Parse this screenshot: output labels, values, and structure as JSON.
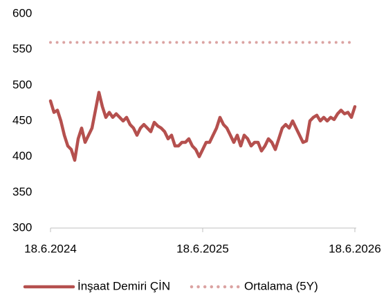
{
  "chart_data": {
    "type": "line",
    "x": [
      0,
      1,
      2,
      3,
      4,
      5,
      6,
      7,
      8,
      9,
      10,
      11,
      12,
      13,
      14,
      15,
      16,
      17,
      18,
      19,
      20,
      21,
      22,
      23,
      24,
      25,
      26,
      27,
      28,
      29,
      30,
      31,
      32,
      33,
      34,
      35,
      36,
      37,
      38,
      39,
      40,
      41,
      42,
      43,
      44,
      45,
      46,
      47,
      48,
      49,
      50,
      51,
      52,
      53,
      54,
      55,
      56,
      57,
      58,
      59,
      60,
      61,
      62,
      63,
      64,
      65,
      66,
      67,
      68,
      69,
      70,
      71,
      72,
      73,
      74,
      75,
      76,
      77,
      78,
      79,
      80,
      81,
      82,
      83,
      84,
      85,
      86,
      87,
      88
    ],
    "series": [
      {
        "name": "İnşaat Demiri ÇİN",
        "color": "#b5504e",
        "style": "solid",
        "values": [
          478,
          462,
          465,
          450,
          430,
          415,
          410,
          395,
          425,
          440,
          420,
          430,
          440,
          465,
          490,
          470,
          455,
          462,
          455,
          460,
          455,
          450,
          455,
          445,
          440,
          430,
          440,
          445,
          440,
          435,
          448,
          443,
          440,
          435,
          425,
          430,
          415,
          415,
          420,
          420,
          425,
          415,
          410,
          400,
          410,
          420,
          420,
          430,
          440,
          455,
          445,
          440,
          430,
          420,
          430,
          415,
          430,
          425,
          415,
          420,
          420,
          408,
          415,
          425,
          420,
          410,
          425,
          440,
          445,
          440,
          450,
          440,
          430,
          420,
          422,
          450,
          455,
          458,
          450,
          455,
          450,
          455,
          452,
          460,
          465,
          460,
          462,
          455,
          470
        ]
      },
      {
        "name": "Ortalama (5Y)",
        "color": "#dba3a2",
        "style": "dotted",
        "values": [
          560,
          560,
          560,
          560,
          560,
          560,
          560,
          560,
          560,
          560,
          560,
          560,
          560,
          560,
          560,
          560,
          560,
          560,
          560,
          560,
          560,
          560,
          560,
          560,
          560,
          560,
          560,
          560,
          560,
          560,
          560,
          560,
          560,
          560,
          560,
          560,
          560,
          560,
          560,
          560,
          560,
          560,
          560,
          560,
          560,
          560,
          560,
          560,
          560,
          560,
          560,
          560,
          560,
          560,
          560,
          560,
          560,
          560,
          560,
          560,
          560,
          560,
          560,
          560,
          560,
          560,
          560,
          560,
          560,
          560,
          560,
          560,
          560,
          560,
          560,
          560,
          560,
          560,
          560,
          560,
          560,
          560,
          560,
          560,
          560,
          560,
          560,
          560,
          560
        ]
      }
    ],
    "xlim": [
      0,
      88
    ],
    "xticks": [
      {
        "value": 0,
        "label": "18.6.2024"
      },
      {
        "value": 44,
        "label": "18.6.2025"
      },
      {
        "value": 88,
        "label": "18.6.2026"
      }
    ],
    "ylim": [
      300,
      600
    ],
    "yticks": [
      300,
      350,
      400,
      450,
      500,
      550,
      600
    ],
    "grid": false,
    "legend": "bottom"
  }
}
